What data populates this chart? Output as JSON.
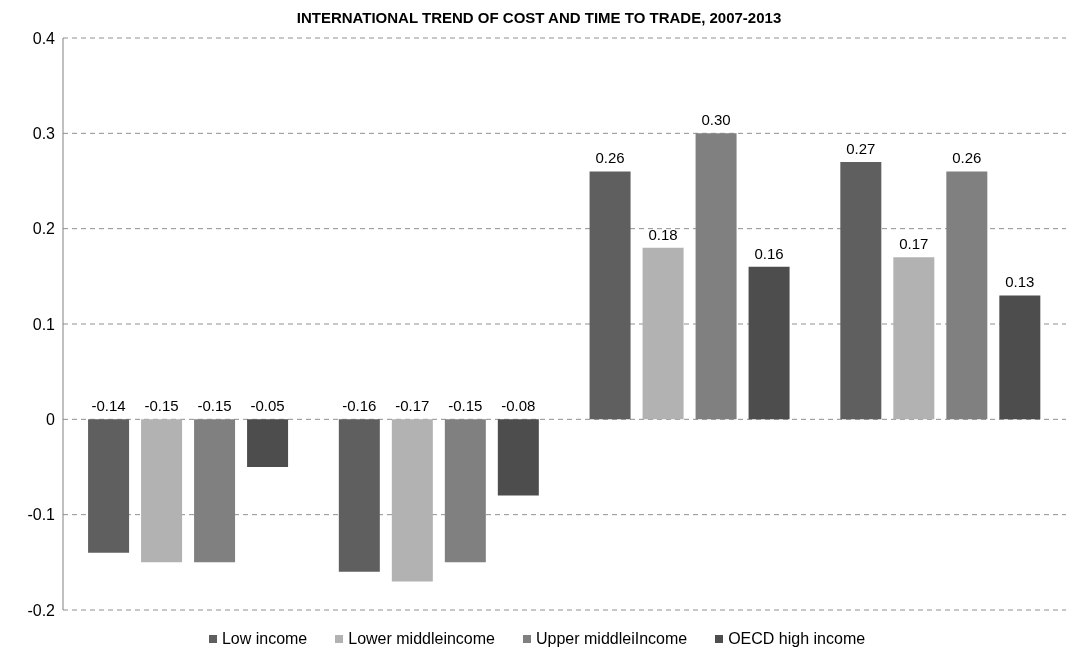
{
  "chart_data": {
    "type": "bar",
    "title": "INTERNATIONAL TREND OF COST AND TIME TO TRADE, 2007-2013",
    "categories": [
      null,
      null,
      null,
      null
    ],
    "series": [
      {
        "name": "Low income",
        "color": "#5f5f5f",
        "values": [
          -0.14,
          -0.16,
          0.26,
          0.27
        ],
        "value_labels": [
          "-0.14",
          "-0.16",
          "0.26",
          "0.27"
        ]
      },
      {
        "name": "Lower middleincome",
        "color": "#b2b2b2",
        "values": [
          -0.15,
          -0.17,
          0.18,
          0.17
        ],
        "value_labels": [
          "-0.15",
          "-0.17",
          "0.18",
          "0.17"
        ]
      },
      {
        "name": "Upper middleiIncome",
        "color": "#808080",
        "values": [
          -0.15,
          -0.15,
          0.3,
          0.26
        ],
        "value_labels": [
          "-0.15",
          "-0.15",
          "0.30",
          "0.26"
        ]
      },
      {
        "name": "OECD high income",
        "color": "#4d4d4d",
        "values": [
          -0.05,
          -0.08,
          0.16,
          0.13
        ],
        "value_labels": [
          "-0.05",
          "-0.08",
          "0.16",
          "0.13"
        ]
      }
    ],
    "ylim": [
      -0.2,
      0.4
    ],
    "yticks": [
      {
        "value": -0.2,
        "label": "-0.2"
      },
      {
        "value": -0.1,
        "label": "-0.1"
      },
      {
        "value": 0,
        "label": "0"
      },
      {
        "value": 0.1,
        "label": "0.1"
      },
      {
        "value": 0.2,
        "label": "0.2"
      },
      {
        "value": 0.3,
        "label": "0.3"
      },
      {
        "value": 0.4,
        "label": "0.4"
      }
    ],
    "grid": "y",
    "legend": "bottom",
    "tick_labels": "y"
  }
}
